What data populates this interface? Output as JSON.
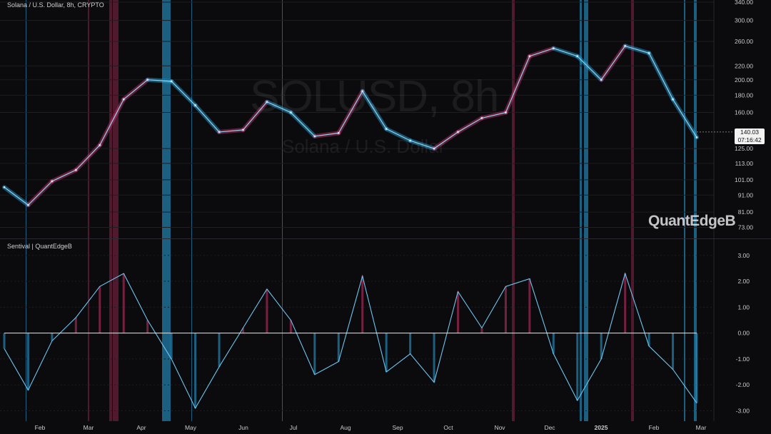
{
  "chart_data": [
    {
      "type": "line",
      "panel": "price",
      "title": "Solana / U.S. Dollar, 8h, CRYPTO",
      "watermark": "SOLUSD, 8h",
      "watermark_sub": "Solana / U.S. Dollar",
      "brand": "QuantEdgeB",
      "y_scale": "log",
      "ylim": [
        68,
        345
      ],
      "y_ticks": [
        "340.00",
        "300.00",
        "260.00",
        "220.00",
        "200.00",
        "180.00",
        "160.00",
        "125.00",
        "113.00",
        "101.00",
        "91.00",
        "81.00",
        "73.00"
      ],
      "last_price": "140.03",
      "last_time": "07:16:42",
      "x_ticks": [
        "Feb",
        "Mar",
        "Apr",
        "May",
        "Jun",
        "Jul",
        "Aug",
        "Sep",
        "Oct",
        "Nov",
        "Dec",
        "2025",
        "Feb",
        "Mar"
      ],
      "series": [
        {
          "x": [
            "Jan",
            "Jan",
            "Feb",
            "Feb",
            "Mar",
            "Mar",
            "Mar",
            "Apr",
            "Apr",
            "May",
            "May",
            "Jun",
            "Jun",
            "Jul",
            "Jul",
            "Aug",
            "Aug",
            "Sep",
            "Sep",
            "Oct",
            "Oct",
            "Nov",
            "Nov",
            "Dec",
            "Dec",
            "Jan",
            "Jan",
            "Feb",
            "Feb",
            "Feb"
          ],
          "values": [
            96,
            85,
            100,
            108,
            128,
            175,
            200,
            198,
            168,
            140,
            142,
            172,
            160,
            136,
            139,
            185,
            143,
            132,
            125,
            140,
            154,
            160,
            235,
            248,
            235,
            200,
            252,
            240,
            175,
            135
          ]
        }
      ]
    },
    {
      "type": "area",
      "panel": "oscillator",
      "title": "Sentival | QuantEdgeB",
      "ylim": [
        -3.4,
        3.6
      ],
      "y_ticks": [
        "3.00",
        "2.00",
        "1.00",
        "0.00",
        "-1.00",
        "-2.00",
        "-3.00"
      ],
      "zero_line": 0,
      "positive_color": "#d0336b",
      "negative_color": "#2ba8e2",
      "series": [
        {
          "x": [
            "Jan",
            "Jan",
            "Feb",
            "Feb",
            "Mar",
            "Mar",
            "Mar",
            "Apr",
            "Apr",
            "May",
            "May",
            "Jun",
            "Jun",
            "Jul",
            "Jul",
            "Aug",
            "Aug",
            "Sep",
            "Sep",
            "Oct",
            "Oct",
            "Nov",
            "Nov",
            "Dec",
            "Dec",
            "Jan",
            "Jan",
            "Feb",
            "Feb",
            "Feb"
          ],
          "values": [
            -0.6,
            -2.2,
            -0.3,
            0.6,
            1.8,
            2.3,
            0.5,
            -1.0,
            -2.9,
            -1.3,
            0.2,
            1.7,
            0.5,
            -1.6,
            -1.1,
            2.2,
            -1.5,
            -0.8,
            -1.9,
            1.6,
            0.2,
            1.8,
            2.1,
            -0.8,
            -2.6,
            -1.0,
            2.3,
            -0.5,
            -1.4,
            -2.7
          ]
        }
      ]
    }
  ],
  "colors": {
    "background": "#0b0b0d",
    "grid": "#1d1d22",
    "bullish": "#d0336b",
    "bearish": "#2ba8e2",
    "axis_text": "#c9c9cf"
  }
}
